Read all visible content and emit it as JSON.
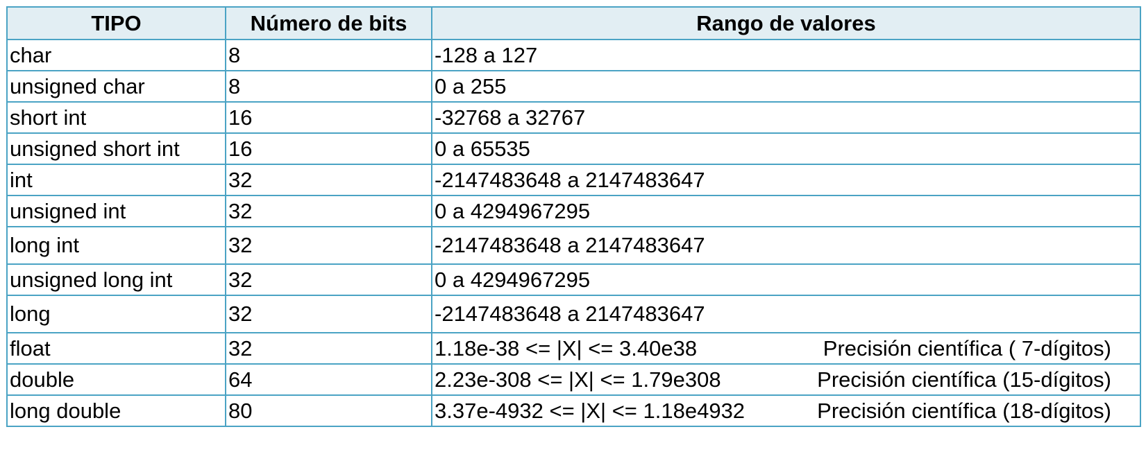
{
  "table": {
    "headers": {
      "tipo": "TIPO",
      "bits": "Número de bits",
      "rango": "Rango de valores"
    },
    "rows": [
      {
        "tipo": "char",
        "bits": "8",
        "rango": "-128 a 127",
        "precision": ""
      },
      {
        "tipo": "unsigned char",
        "bits": "8",
        "rango": "0 a 255",
        "precision": ""
      },
      {
        "tipo": "short int",
        "bits": "16",
        "rango": "-32768 a 32767",
        "precision": ""
      },
      {
        "tipo": "unsigned short int",
        "bits": "16",
        "rango": "0 a 65535",
        "precision": ""
      },
      {
        "tipo": "int",
        "bits": "32",
        "rango": "-2147483648 a 2147483647",
        "precision": ""
      },
      {
        "tipo": "unsigned int",
        "bits": "32",
        "rango": "0 a 4294967295",
        "precision": ""
      },
      {
        "tipo": "long int",
        "bits": "32",
        "rango": "-2147483648 a 2147483647",
        "precision": ""
      },
      {
        "tipo": "unsigned long int",
        "bits": "32",
        "rango": "0 a 4294967295",
        "precision": ""
      },
      {
        "tipo": "long",
        "bits": "32",
        "rango": "-2147483648 a 2147483647",
        "precision": ""
      },
      {
        "tipo": "float",
        "bits": "32",
        "rango": "1.18e-38 <= |X| <= 3.40e38",
        "precision": "Precisión científica ( 7-dígitos)"
      },
      {
        "tipo": "double",
        "bits": "64",
        "rango": "2.23e-308 <= |X| <= 1.79e308",
        "precision": "Precisión científica (15-dígitos)"
      },
      {
        "tipo": "long double",
        "bits": "80",
        "rango": "3.37e-4932 <= |X| <= 1.18e4932",
        "precision": "Precisión científica (18-dígitos)"
      }
    ]
  },
  "colors": {
    "border": "#4aa3c4",
    "header_bg": "#e2eef3",
    "text": "#000000"
  }
}
